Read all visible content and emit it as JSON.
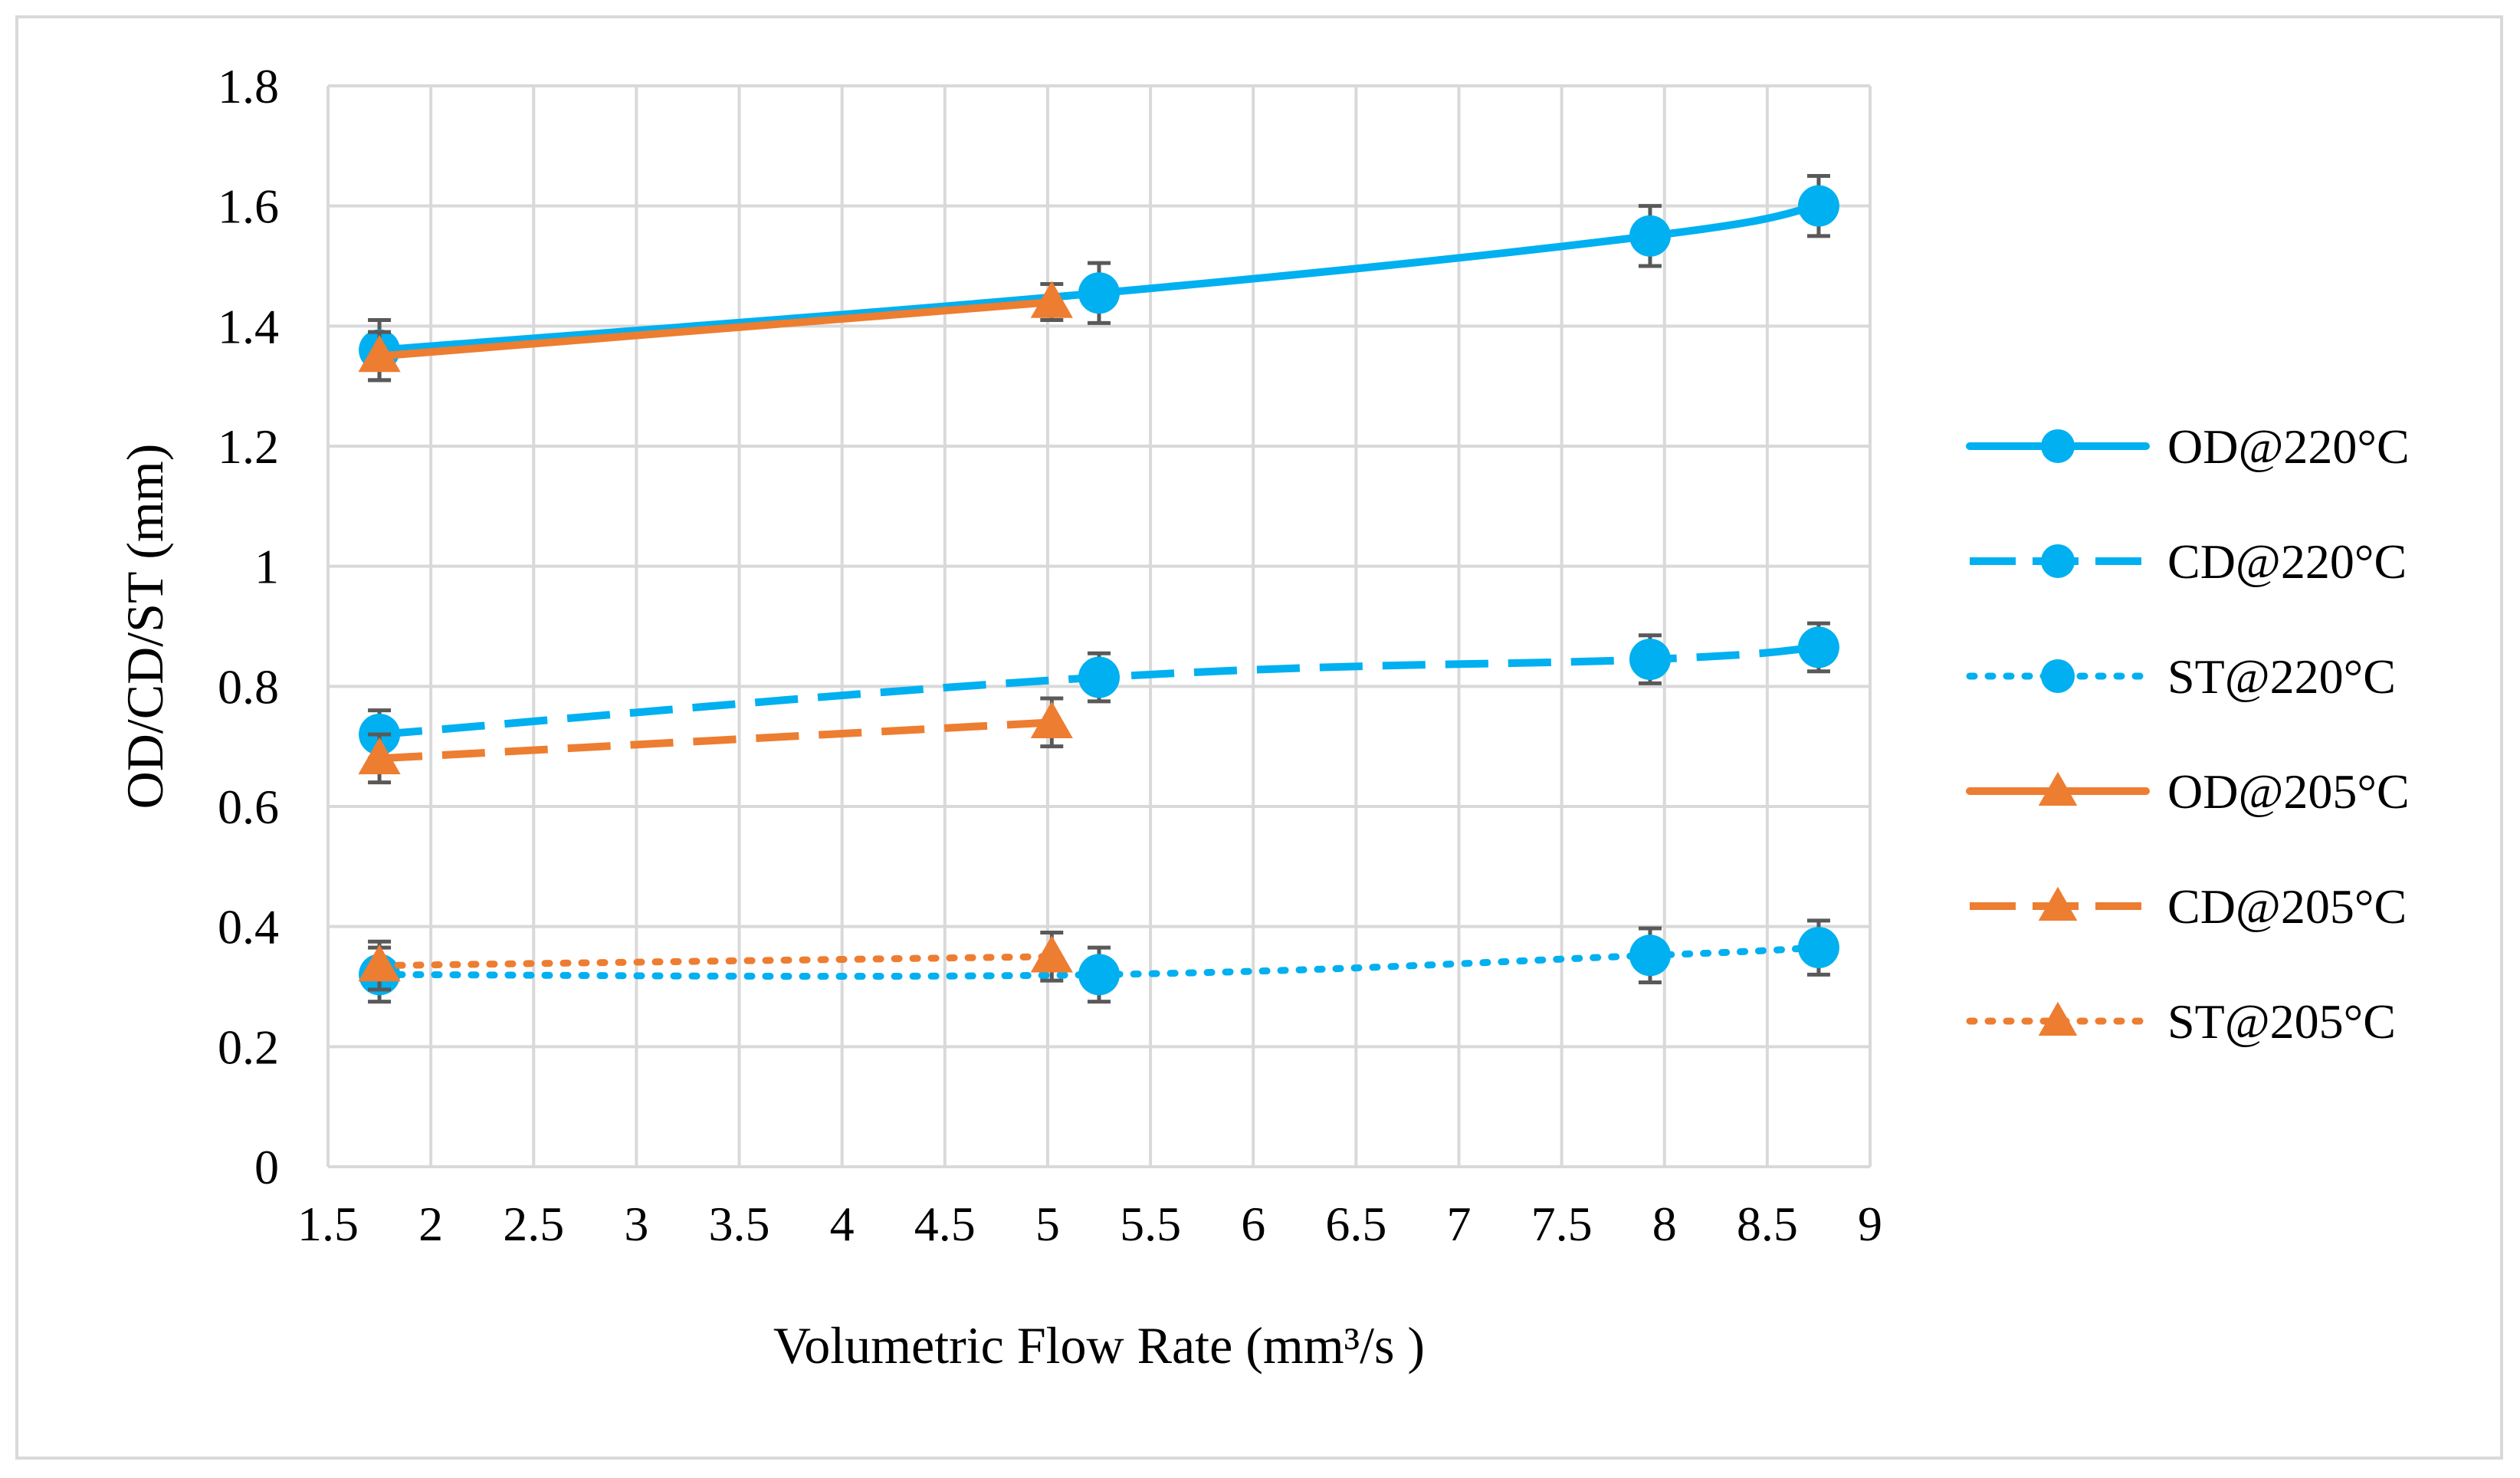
{
  "chart_data": {
    "type": "line",
    "title": "",
    "xlabel": "Volumetric Flow Rate (mm³/s )",
    "ylabel": "OD/CD/ST (mm)",
    "xlim": [
      1.5,
      9
    ],
    "ylim": [
      0,
      1.8
    ],
    "xticks": [
      "1.5",
      "2",
      "2.5",
      "3",
      "3.5",
      "4",
      "4.5",
      "5",
      "5.5",
      "6",
      "6.5",
      "7",
      "7.5",
      "8",
      "8.5",
      "9"
    ],
    "yticks": [
      "0",
      "0.2",
      "0.4",
      "0.6",
      "0.8",
      "1",
      "1.2",
      "1.4",
      "1.6",
      "1.8"
    ],
    "grid": true,
    "legend_position": "right",
    "error_bars": true,
    "series": [
      {
        "name": "OD@220°C",
        "color": "#00b0f0",
        "dash": "solid",
        "marker": "circle",
        "x": [
          1.75,
          5.25,
          7.93,
          8.75
        ],
        "y": [
          1.36,
          1.455,
          1.55,
          1.6
        ],
        "err": [
          0.05,
          0.05,
          0.05,
          0.05
        ]
      },
      {
        "name": "CD@220°C",
        "color": "#00b0f0",
        "dash": "dash",
        "marker": "circle",
        "x": [
          1.75,
          5.25,
          7.93,
          8.75
        ],
        "y": [
          0.72,
          0.815,
          0.845,
          0.865
        ],
        "err": [
          0.04,
          0.04,
          0.04,
          0.04
        ]
      },
      {
        "name": "ST@220°C",
        "color": "#00b0f0",
        "dash": "dot",
        "marker": "circle",
        "x": [
          1.75,
          5.25,
          7.93,
          8.75
        ],
        "y": [
          0.32,
          0.32,
          0.352,
          0.365
        ],
        "err": [
          0.045,
          0.045,
          0.045,
          0.045
        ]
      },
      {
        "name": "OD@205°C",
        "color": "#ed7d31",
        "dash": "solid",
        "marker": "triangle",
        "x": [
          1.75,
          5.02
        ],
        "y": [
          1.35,
          1.44
        ],
        "err": [
          0.04,
          0.03
        ]
      },
      {
        "name": "CD@205°C",
        "color": "#ed7d31",
        "dash": "dash",
        "marker": "triangle",
        "x": [
          1.75,
          5.02
        ],
        "y": [
          0.68,
          0.74
        ],
        "err": [
          0.04,
          0.04
        ]
      },
      {
        "name": "ST@205°C",
        "color": "#ed7d31",
        "dash": "dot",
        "marker": "triangle",
        "x": [
          1.75,
          5.02
        ],
        "y": [
          0.335,
          0.35
        ],
        "err": [
          0.04,
          0.04
        ]
      }
    ]
  }
}
